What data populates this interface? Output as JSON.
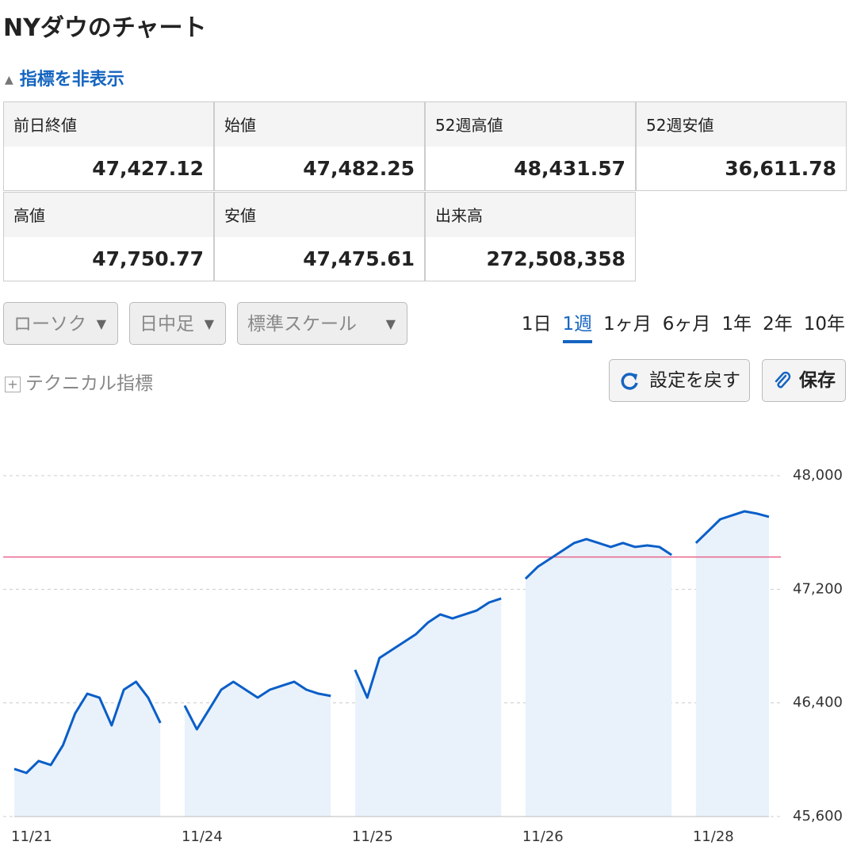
{
  "header": {
    "title": "NYダウのチャート",
    "toggle": "指標を非表示"
  },
  "stats": [
    {
      "label": "前日終値",
      "value": "47,427.12"
    },
    {
      "label": "始値",
      "value": "47,482.25"
    },
    {
      "label": "52週高値",
      "value": "48,431.57"
    },
    {
      "label": "52週安値",
      "value": "36,611.78"
    },
    {
      "label": "高値",
      "value": "47,750.77"
    },
    {
      "label": "安値",
      "value": "47,475.61"
    },
    {
      "label": "出来高",
      "value": "272,508,358"
    }
  ],
  "controls": {
    "dropdowns": [
      "ローソク",
      "日中足",
      "標準スケール"
    ],
    "periods": [
      "1日",
      "1週",
      "1ヶ月",
      "6ヶ月",
      "1年",
      "2年",
      "10年"
    ],
    "active_period": 1,
    "technical": "テクニカル指標",
    "reset": "設定を戻す",
    "save": "保存"
  },
  "chart_data": {
    "type": "line",
    "categories": [
      "11/21",
      null,
      null,
      null,
      null,
      null,
      null,
      null,
      null,
      null,
      null,
      null,
      null,
      null,
      "11/24",
      null,
      null,
      null,
      null,
      null,
      null,
      null,
      null,
      null,
      null,
      null,
      null,
      null,
      "11/25",
      null,
      null,
      null,
      null,
      null,
      null,
      null,
      null,
      null,
      null,
      null,
      null,
      null,
      "11/26",
      null,
      null,
      null,
      null,
      null,
      null,
      null,
      null,
      null,
      null,
      null,
      null,
      null,
      "11/28",
      null,
      null,
      null,
      null,
      null,
      null
    ],
    "values": [
      45935,
      45907,
      45991,
      45963,
      46102,
      46326,
      46465,
      46437,
      46242,
      46493,
      46549,
      46437,
      46259,
      null,
      46381,
      46214,
      46353,
      46493,
      46549,
      46493,
      46437,
      46493,
      46521,
      46549,
      46493,
      46465,
      46449,
      null,
      46633,
      46437,
      46716,
      46772,
      46828,
      46884,
      46967,
      47023,
      46995,
      47023,
      47051,
      47107,
      47135,
      null,
      47274,
      47358,
      47414,
      47470,
      47526,
      47553,
      47526,
      47498,
      47526,
      47498,
      47509,
      47498,
      47442,
      null,
      47526,
      47609,
      47693,
      47721,
      47749,
      47733,
      47710
    ],
    "color": "#0a5ec8",
    "fill_color": "#e9f2fb",
    "ylim": [
      45600,
      48000
    ],
    "yticks": [
      {
        "value": 45600,
        "label": "45,600"
      },
      {
        "value": 46400,
        "label": "46,400"
      },
      {
        "value": 47200,
        "label": "47,200"
      },
      {
        "value": 48000,
        "label": "48,000"
      }
    ],
    "grid": true,
    "reference_line": 47427.12,
    "reference_color": "#e8658a"
  }
}
